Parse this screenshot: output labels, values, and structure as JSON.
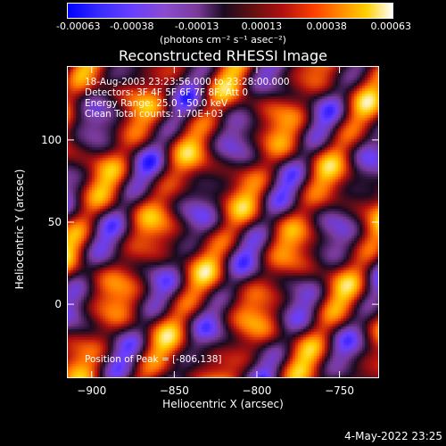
{
  "colorbar": {
    "ticks": [
      "-0.00063",
      "-0.00038",
      "-0.00013",
      "0.00013",
      "0.00038",
      "0.00063"
    ],
    "unit": "(photons cm⁻² s⁻¹ asec⁻²)"
  },
  "info": {
    "time_range": "18-Aug-2003 23:23:56.000 to 23:28:00.000",
    "detectors": "Detectors: 3F 4F 5F 6F 7F 8F, Att 0",
    "energy": "Energy Range: 25.0 - 50.0 keV",
    "method": "Clean     Total counts: 1.70E+03",
    "peak": "Position of Peak = [-806,138]"
  },
  "footer": {
    "timestamp": "4-May-2022 23:25"
  },
  "chart_data": {
    "type": "heatmap",
    "title": "Reconstructed RHESSI Image",
    "xlabel": "Heliocentric X (arcsec)",
    "ylabel": "Heliocentric Y (arcsec)",
    "xlim": [
      -915,
      -726
    ],
    "ylim": [
      -45,
      145
    ],
    "x_ticks": [
      -900,
      -850,
      -800,
      -750
    ],
    "y_ticks": [
      0,
      50,
      100
    ],
    "value_range": [
      -0.00063,
      0.00063
    ],
    "stripe_angle_deg": 62,
    "peak_position": [
      -806,
      138
    ],
    "colormap": [
      "#0000ff",
      "#6a3fff",
      "#7a3a9a",
      "#1a0a20",
      "#b01010",
      "#ff6a00",
      "#ffd000",
      "#ffffff"
    ]
  }
}
